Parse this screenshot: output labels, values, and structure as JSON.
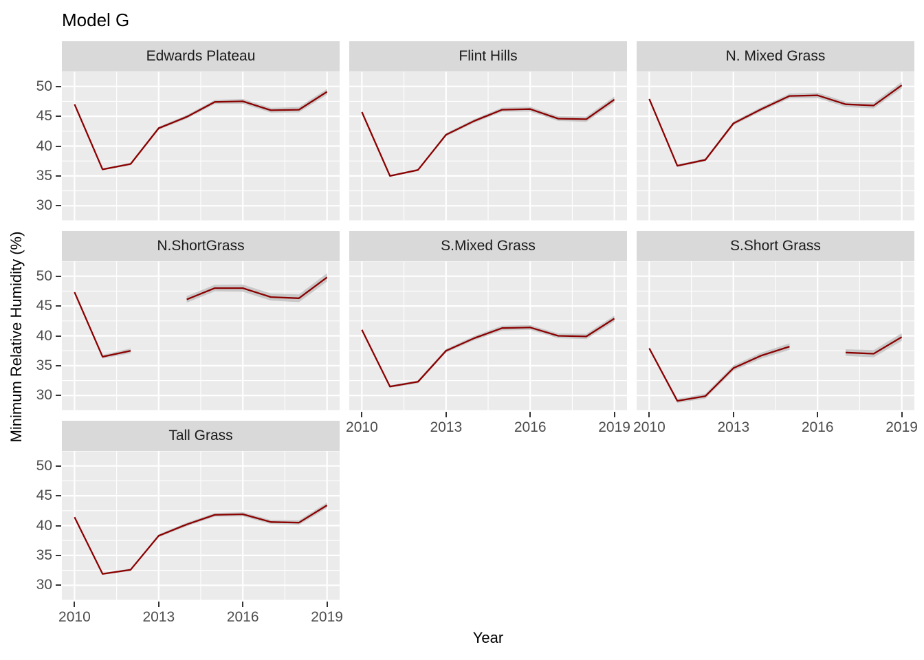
{
  "title": "Model G",
  "axes": {
    "x_label": "Year",
    "y_label": "Minimum Relative Humidity (%)",
    "x_ticks": [
      "2010",
      "2013",
      "2016",
      "2019"
    ],
    "y_ticks": [
      "50",
      "45",
      "40",
      "35",
      "30"
    ]
  },
  "colors": {
    "line": "#8B0000",
    "ribbon": "#C9C9C9",
    "panel_bg": "#EBEBEB",
    "strip_bg": "#D9D9D9",
    "grid": "#FFFFFF",
    "tick_text": "#4D4D4D",
    "tick_mark": "#333333",
    "strip_text": "#1A1A1A",
    "title_text": "#000000"
  },
  "chart_data": {
    "type": "line",
    "title": "Model G",
    "xlabel": "Year",
    "ylabel": "Minimum Relative Humidity (%)",
    "legend": "none",
    "grid": true,
    "x": [
      2010,
      2011,
      2012,
      2013,
      2014,
      2015,
      2016,
      2017,
      2018,
      2019
    ],
    "x_domain": [
      2009.55,
      2019.45
    ],
    "y_domain": [
      27.5,
      52.5
    ],
    "x_major_breaks": [
      2010,
      2013,
      2016,
      2019
    ],
    "x_minor_breaks": [
      2011.5,
      2014.5,
      2017.5
    ],
    "y_major_breaks": [
      30,
      35,
      40,
      45,
      50
    ],
    "y_minor_breaks": [
      27.5,
      32.5,
      37.5,
      42.5,
      47.5,
      52.5
    ],
    "facets": [
      {
        "name": "Edwards Plateau",
        "values": [
          47.0,
          36.1,
          37.0,
          43.0,
          44.9,
          47.4,
          47.5,
          46.0,
          46.1,
          49.1
        ],
        "band": [
          0.08,
          0.15,
          0.2,
          0.25,
          0.3,
          0.35,
          0.4,
          0.4,
          0.45,
          0.5
        ]
      },
      {
        "name": "Flint Hills",
        "values": [
          45.7,
          35.0,
          36.0,
          41.9,
          44.2,
          46.1,
          46.2,
          44.6,
          44.5,
          47.8
        ],
        "band": [
          0.08,
          0.15,
          0.2,
          0.25,
          0.3,
          0.35,
          0.4,
          0.4,
          0.45,
          0.5
        ]
      },
      {
        "name": "N. Mixed Grass",
        "values": [
          47.9,
          36.7,
          37.7,
          43.8,
          46.2,
          48.4,
          48.5,
          47.0,
          46.8,
          50.2
        ],
        "band": [
          0.08,
          0.2,
          0.25,
          0.3,
          0.35,
          0.4,
          0.45,
          0.45,
          0.5,
          0.55
        ]
      },
      {
        "name": "N.ShortGrass",
        "values": [
          47.3,
          36.5,
          37.5,
          null,
          46.1,
          48.0,
          48.0,
          46.5,
          46.3,
          49.8
        ],
        "band": [
          0.15,
          0.3,
          0.4,
          null,
          0.55,
          0.55,
          0.6,
          0.6,
          0.65,
          0.7
        ]
      },
      {
        "name": "S.Mixed Grass",
        "values": [
          41.0,
          31.5,
          32.3,
          37.5,
          39.6,
          41.3,
          41.4,
          40.0,
          39.9,
          42.9
        ],
        "band": [
          0.08,
          0.2,
          0.25,
          0.3,
          0.35,
          0.4,
          0.4,
          0.4,
          0.45,
          0.5
        ]
      },
      {
        "name": "S.Short Grass",
        "values": [
          37.9,
          29.1,
          29.9,
          34.6,
          36.7,
          38.2,
          null,
          37.2,
          37.0,
          39.8
        ],
        "band": [
          0.2,
          0.35,
          0.4,
          0.45,
          0.5,
          0.55,
          null,
          0.55,
          0.6,
          0.65
        ]
      },
      {
        "name": "Tall Grass",
        "values": [
          41.4,
          31.9,
          32.6,
          38.3,
          40.2,
          41.8,
          41.9,
          40.6,
          40.5,
          43.4
        ],
        "band": [
          0.08,
          0.15,
          0.2,
          0.25,
          0.3,
          0.3,
          0.35,
          0.35,
          0.4,
          0.45
        ]
      }
    ]
  }
}
